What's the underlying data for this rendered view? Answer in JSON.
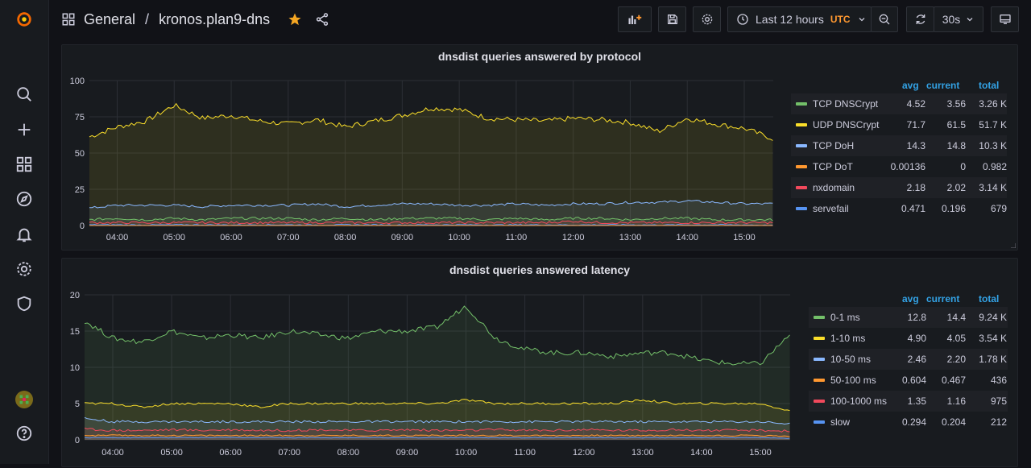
{
  "header": {
    "folder": "General",
    "separator": "/",
    "dashboard": "kronos.plan9-dns",
    "time_range": "Last 12 hours",
    "timezone": "UTC",
    "refresh": "30s"
  },
  "sidebar": {
    "items": [
      "grafana-logo",
      "search-icon",
      "plus-icon",
      "dashboards-icon",
      "explore-icon",
      "alerting-icon",
      "configuration-icon",
      "shield-icon",
      "avatar",
      "help-icon"
    ]
  },
  "panels": [
    {
      "title": "dnsdist queries answered by protocol",
      "legend_headers": {
        "avg": "avg",
        "current": "current",
        "total": "total"
      },
      "legend": [
        {
          "name": "TCP DNSCrypt",
          "avg": "4.52",
          "current": "3.56",
          "total": "3.26 K",
          "color": "#73bf69"
        },
        {
          "name": "UDP DNSCrypt",
          "avg": "71.7",
          "current": "61.5",
          "total": "51.7 K",
          "color": "#fade2a"
        },
        {
          "name": "TCP DoH",
          "avg": "14.3",
          "current": "14.8",
          "total": "10.3 K",
          "color": "#8ab8ff"
        },
        {
          "name": "TCP DoT",
          "avg": "0.00136",
          "current": "0",
          "total": "0.982",
          "color": "#ff9830"
        },
        {
          "name": "nxdomain",
          "avg": "2.18",
          "current": "2.02",
          "total": "3.14 K",
          "color": "#f2495c"
        },
        {
          "name": "servefail",
          "avg": "0.471",
          "current": "0.196",
          "total": "679",
          "color": "#5794f2"
        }
      ]
    },
    {
      "title": "dnsdist queries answered latency",
      "legend_headers": {
        "avg": "avg",
        "current": "current",
        "total": "total"
      },
      "legend": [
        {
          "name": "0-1 ms",
          "avg": "12.8",
          "current": "14.4",
          "total": "9.24 K",
          "color": "#73bf69"
        },
        {
          "name": "1-10 ms",
          "avg": "4.90",
          "current": "4.05",
          "total": "3.54 K",
          "color": "#fade2a"
        },
        {
          "name": "10-50 ms",
          "avg": "2.46",
          "current": "2.20",
          "total": "1.78 K",
          "color": "#8ab8ff"
        },
        {
          "name": "50-100 ms",
          "avg": "0.604",
          "current": "0.467",
          "total": "436",
          "color": "#ff9830"
        },
        {
          "name": "100-1000 ms",
          "avg": "1.35",
          "current": "1.16",
          "total": "975",
          "color": "#f2495c"
        },
        {
          "name": "slow",
          "avg": "0.294",
          "current": "0.204",
          "total": "212",
          "color": "#5794f2"
        }
      ]
    }
  ],
  "chart_data": [
    {
      "type": "area",
      "title": "dnsdist queries answered by protocol",
      "x": [
        "03:30",
        "04:00",
        "04:30",
        "05:00",
        "05:30",
        "06:00",
        "06:30",
        "07:00",
        "07:30",
        "08:00",
        "08:30",
        "09:00",
        "09:30",
        "10:00",
        "10:30",
        "11:00",
        "11:30",
        "12:00",
        "12:30",
        "13:00",
        "13:30",
        "14:00",
        "14:30",
        "15:00",
        "15:30"
      ],
      "x_ticks": [
        "04:00",
        "05:00",
        "06:00",
        "07:00",
        "08:00",
        "09:00",
        "10:00",
        "11:00",
        "12:00",
        "13:00",
        "14:00",
        "15:00"
      ],
      "y_ticks": [
        "0",
        "25",
        "50",
        "75",
        "100"
      ],
      "ylim": [
        0,
        100
      ],
      "series": [
        {
          "name": "UDP DNSCrypt",
          "values": [
            61,
            68,
            72,
            83,
            74,
            76,
            72,
            70,
            73,
            68,
            72,
            76,
            81,
            80,
            74,
            73,
            72,
            74,
            73,
            71,
            65,
            74,
            70,
            67,
            60
          ]
        },
        {
          "name": "TCP DoH",
          "values": [
            12,
            14,
            14,
            14,
            13,
            14,
            14,
            14,
            15,
            13,
            14,
            15,
            15,
            14,
            14,
            15,
            14,
            15,
            15,
            16,
            16,
            17,
            16,
            15,
            15
          ]
        },
        {
          "name": "TCP DNSCrypt",
          "values": [
            4,
            5,
            4,
            5,
            4,
            5,
            5,
            5,
            4,
            5,
            4,
            5,
            5,
            5,
            4,
            5,
            4,
            5,
            5,
            4,
            5,
            5,
            4,
            4,
            4
          ]
        },
        {
          "name": "nxdomain",
          "values": [
            2,
            2,
            2,
            2,
            2,
            2,
            2,
            2,
            2,
            2,
            2,
            2,
            2,
            2,
            2,
            2,
            2,
            3,
            2,
            2,
            2,
            2,
            2,
            2,
            2
          ]
        },
        {
          "name": "servefail",
          "values": [
            0.5,
            0.5,
            0.4,
            0.5,
            0.5,
            0.4,
            0.5,
            0.5,
            0.4,
            0.5,
            0.5,
            0.4,
            0.5,
            0.5,
            0.4,
            0.5,
            0.5,
            0.4,
            0.5,
            0.5,
            0.4,
            0.5,
            0.5,
            0.4,
            0.2
          ]
        },
        {
          "name": "TCP DoT",
          "values": [
            0,
            0,
            0,
            0,
            0,
            0,
            0,
            0,
            0,
            0,
            0,
            0,
            0,
            0,
            0,
            0,
            0,
            0,
            0,
            0,
            0,
            0,
            0,
            0,
            0
          ]
        }
      ]
    },
    {
      "type": "area",
      "title": "dnsdist queries answered latency",
      "x": [
        "03:30",
        "04:00",
        "04:30",
        "05:00",
        "05:30",
        "06:00",
        "06:30",
        "07:00",
        "07:30",
        "08:00",
        "08:30",
        "09:00",
        "09:30",
        "10:00",
        "10:30",
        "11:00",
        "11:30",
        "12:00",
        "12:30",
        "13:00",
        "13:30",
        "14:00",
        "14:30",
        "15:00",
        "15:30"
      ],
      "x_ticks": [
        "04:00",
        "05:00",
        "06:00",
        "07:00",
        "08:00",
        "09:00",
        "10:00",
        "11:00",
        "12:00",
        "13:00",
        "14:00",
        "15:00"
      ],
      "y_ticks": [
        "0",
        "5",
        "10",
        "15",
        "20"
      ],
      "ylim": [
        0,
        20
      ],
      "series": [
        {
          "name": "0-1 ms",
          "values": [
            16.5,
            14,
            13.5,
            15,
            14,
            14.5,
            14,
            15,
            14.5,
            14,
            15,
            15,
            15.5,
            18.5,
            14,
            12.5,
            12,
            12,
            11.5,
            12,
            12,
            11,
            10.5,
            10.5,
            14.5
          ]
        },
        {
          "name": "1-10 ms",
          "values": [
            5,
            5,
            4.5,
            5,
            5,
            5,
            4.5,
            5,
            5,
            5,
            5,
            5,
            5,
            5.5,
            5,
            5,
            5,
            5,
            5,
            5.5,
            5,
            5,
            5,
            5,
            4
          ]
        },
        {
          "name": "10-50 ms",
          "values": [
            3,
            2.5,
            2.5,
            2.5,
            2.5,
            2.5,
            2.5,
            2.5,
            2.5,
            2.5,
            2.5,
            2.5,
            2.5,
            2.5,
            2.5,
            2.5,
            2.5,
            2.5,
            2.5,
            2.5,
            2.5,
            2.5,
            2.5,
            2.5,
            2.2
          ]
        },
        {
          "name": "100-1000 ms",
          "values": [
            1.5,
            1.3,
            1.3,
            1.4,
            1.3,
            1.4,
            1.3,
            1.3,
            1.4,
            1.3,
            1.3,
            1.4,
            1.3,
            1.3,
            1.4,
            1.3,
            1.3,
            1.4,
            1.3,
            1.3,
            1.4,
            1.3,
            1.3,
            1.3,
            1.2
          ]
        },
        {
          "name": "50-100 ms",
          "values": [
            0.6,
            0.6,
            0.6,
            0.6,
            0.6,
            0.6,
            0.6,
            0.6,
            0.6,
            0.6,
            0.6,
            0.6,
            0.6,
            0.6,
            0.6,
            0.6,
            0.6,
            0.6,
            0.6,
            0.6,
            0.6,
            0.6,
            0.6,
            0.6,
            0.5
          ]
        },
        {
          "name": "slow",
          "values": [
            0.3,
            0.3,
            0.3,
            0.3,
            0.3,
            0.3,
            0.3,
            0.3,
            0.3,
            0.3,
            0.3,
            0.3,
            0.3,
            0.3,
            0.3,
            0.3,
            0.3,
            0.3,
            0.3,
            0.3,
            0.3,
            0.3,
            0.3,
            0.3,
            0.2
          ]
        }
      ]
    }
  ]
}
